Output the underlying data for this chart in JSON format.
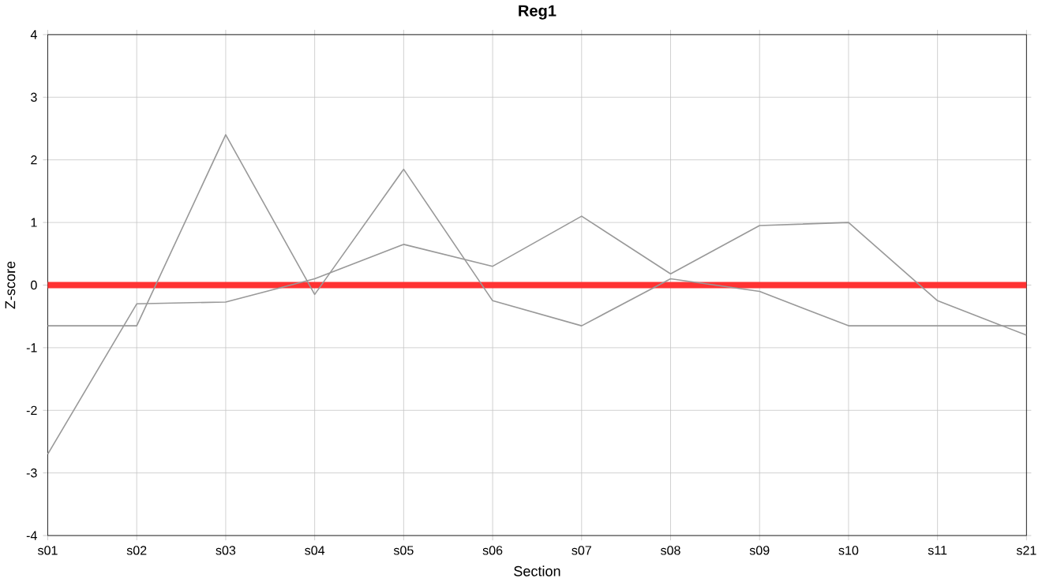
{
  "chart_data": {
    "type": "line",
    "title": "Reg1",
    "xlabel": "Section",
    "ylabel": "Z-score",
    "categories": [
      "s01",
      "s02",
      "s03",
      "s04",
      "s05",
      "s06",
      "s07",
      "s08",
      "s09",
      "s10",
      "s11",
      "s21"
    ],
    "series": [
      {
        "color": "#999999",
        "values": [
          -0.65,
          -0.65,
          2.4,
          -0.15,
          1.85,
          -0.25,
          -0.65,
          0.1,
          -0.1,
          -0.65,
          -0.65,
          -0.65
        ]
      },
      {
        "color": "#999999",
        "values": [
          -2.7,
          -0.3,
          -0.27,
          0.1,
          0.65,
          0.3,
          1.1,
          0.18,
          0.95,
          1.0,
          -0.25,
          -0.8
        ]
      }
    ],
    "ylim": [
      -4,
      4
    ],
    "yticks": [
      -4,
      -3,
      -2,
      -1,
      0,
      1,
      2,
      3,
      4
    ],
    "grid": true,
    "marker": "none",
    "line_style": "solid",
    "ref_lines": [
      {
        "axis": "y",
        "value": 0,
        "color": "#ff3333"
      }
    ]
  }
}
